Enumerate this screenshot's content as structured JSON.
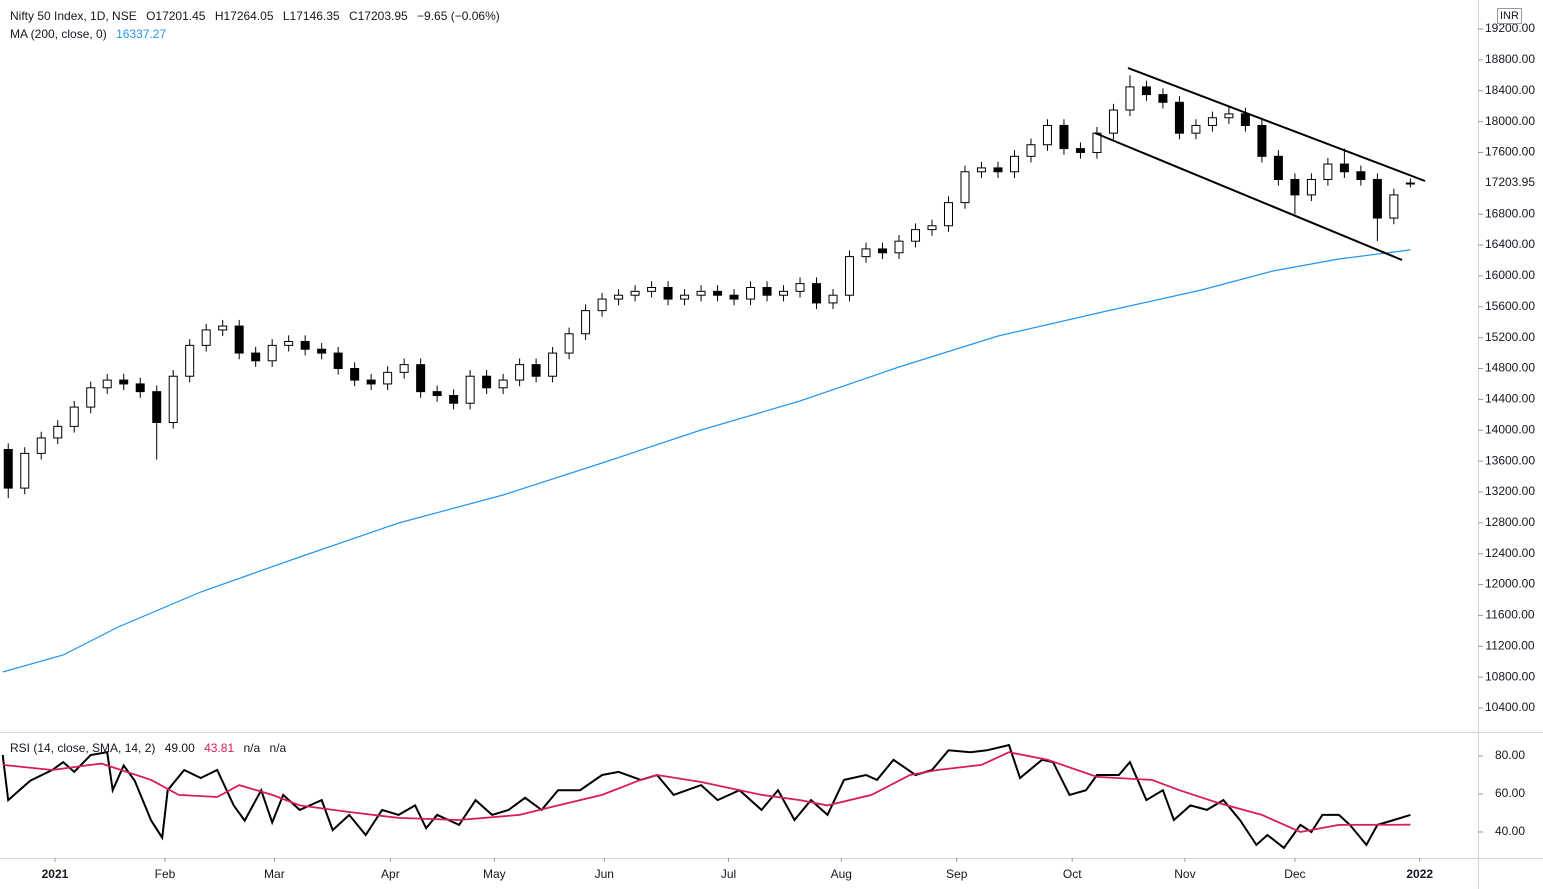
{
  "chart_data": [
    {
      "type": "candlestick",
      "title": "Nifty 50 Index, 1D, NSE",
      "ohlc_labels": [
        "O17201.45",
        "H17264.05",
        "L17146.35",
        "C17203.95"
      ],
      "change": "−9.65 (−0.06%)",
      "currency": "INR",
      "up_color": "#ffffff",
      "down_color": "#000000",
      "edge_color": "#000000",
      "x": [
        0,
        3,
        6,
        9,
        12,
        15,
        18,
        21,
        24,
        27,
        30,
        33,
        36,
        39,
        42,
        45,
        48,
        51,
        54,
        57,
        60,
        63,
        66,
        69,
        72,
        75,
        78,
        81,
        84,
        87,
        90,
        93,
        96,
        99,
        102,
        105,
        108,
        111,
        114,
        117,
        120,
        123,
        126,
        129,
        132,
        135,
        138,
        141,
        144,
        147,
        150,
        153,
        156,
        159,
        162,
        165,
        168,
        171,
        174,
        177,
        180,
        183,
        186,
        189,
        192,
        195,
        198,
        201,
        204,
        207,
        210,
        213,
        216,
        219,
        222,
        225,
        228,
        231,
        234,
        237,
        240,
        243,
        246,
        249,
        252,
        255
      ],
      "open": [
        13750,
        13250,
        13700,
        13900,
        14050,
        14300,
        14550,
        14650,
        14600,
        14500,
        14100,
        14700,
        15100,
        15300,
        15350,
        15000,
        14900,
        15100,
        15150,
        15050,
        15000,
        14800,
        14650,
        14600,
        14750,
        14850,
        14500,
        14450,
        14350,
        14700,
        14550,
        14650,
        14850,
        14700,
        15000,
        15250,
        15550,
        15700,
        15750,
        15800,
        15850,
        15700,
        15750,
        15800,
        15750,
        15700,
        15850,
        15750,
        15800,
        15900,
        15650,
        15750,
        16250,
        16350,
        16300,
        16450,
        16600,
        16650,
        16950,
        17350,
        17400,
        17350,
        17550,
        17700,
        17950,
        17650,
        17600,
        17850,
        18150,
        18450,
        18350,
        18250,
        17850,
        17950,
        18050,
        18100,
        17950,
        17550,
        17250,
        17050,
        17250,
        17450,
        17350,
        17250,
        16750,
        17201.45
      ],
      "high": [
        13830,
        13780,
        13980,
        14130,
        14380,
        14630,
        14730,
        14730,
        14680,
        14580,
        14780,
        15180,
        15380,
        15430,
        15430,
        15080,
        15180,
        15230,
        15230,
        15130,
        15080,
        14880,
        14730,
        14830,
        14930,
        14930,
        14580,
        14530,
        14780,
        14780,
        14730,
        14930,
        14930,
        15080,
        15330,
        15630,
        15780,
        15830,
        15880,
        15930,
        15930,
        15830,
        15880,
        15880,
        15830,
        15930,
        15930,
        15880,
        15980,
        15980,
        15830,
        16330,
        16430,
        16430,
        16530,
        16680,
        16730,
        17030,
        17430,
        17480,
        17480,
        17630,
        17780,
        18030,
        18030,
        17730,
        17930,
        18230,
        18600,
        18530,
        18430,
        18330,
        18030,
        18130,
        18200,
        18180,
        18030,
        17630,
        17330,
        17330,
        17530,
        17650,
        17430,
        17330,
        17130,
        17264.05
      ],
      "low": [
        13120,
        13170,
        13620,
        13820,
        13970,
        14220,
        14470,
        14520,
        14420,
        13620,
        14020,
        14620,
        15020,
        15220,
        14920,
        14820,
        14820,
        15020,
        14970,
        14920,
        14720,
        14570,
        14520,
        14520,
        14670,
        14420,
        14370,
        14270,
        14270,
        14470,
        14470,
        14570,
        14620,
        14620,
        14920,
        15170,
        15470,
        15620,
        15670,
        15720,
        15620,
        15620,
        15670,
        15670,
        15620,
        15620,
        15670,
        15670,
        15720,
        15570,
        15570,
        15670,
        16170,
        16220,
        16220,
        16370,
        16520,
        16570,
        16870,
        17270,
        17270,
        17270,
        17470,
        17620,
        17570,
        17520,
        17520,
        17770,
        18070,
        18270,
        18170,
        17770,
        17770,
        17870,
        17970,
        17870,
        17470,
        17170,
        16800,
        16970,
        17170,
        17270,
        17170,
        16450,
        16670,
        17146.35
      ],
      "close": [
        13250,
        13700,
        13900,
        14050,
        14300,
        14550,
        14650,
        14600,
        14500,
        14100,
        14700,
        15100,
        15300,
        15350,
        15000,
        14900,
        15100,
        15150,
        15050,
        15000,
        14800,
        14650,
        14600,
        14750,
        14850,
        14500,
        14450,
        14350,
        14700,
        14550,
        14650,
        14850,
        14700,
        15000,
        15250,
        15550,
        15700,
        15750,
        15800,
        15850,
        15700,
        15750,
        15800,
        15750,
        15700,
        15850,
        15750,
        15800,
        15900,
        15650,
        15750,
        16250,
        16350,
        16300,
        16450,
        16600,
        16650,
        16950,
        17350,
        17400,
        17350,
        17550,
        17700,
        17950,
        17650,
        17600,
        17850,
        18150,
        18450,
        18350,
        18250,
        17850,
        17950,
        18050,
        18100,
        17950,
        17550,
        17250,
        17050,
        17250,
        17450,
        17350,
        17250,
        16750,
        17050,
        17203.95
      ],
      "overlays": [
        {
          "name": "MA (200, close, 0)",
          "color": "#2196f3",
          "x": [
            -1,
            10,
            20,
            35,
            53,
            71,
            90,
            108,
            126,
            144,
            162,
            180,
            199,
            217,
            230,
            242,
            255
          ],
          "values": [
            10867,
            11087,
            11450,
            11904,
            12357,
            12798,
            13161,
            13575,
            14003,
            14379,
            14820,
            15221,
            15532,
            15817,
            16064,
            16219,
            16337.27
          ]
        }
      ],
      "xlim": [
        -1.5,
        267.3
      ],
      "ylim": [
        10089,
        19576
      ],
      "yticks": [
        {
          "value": 10400,
          "label": "10400.00"
        },
        {
          "value": 10800,
          "label": "10800.00"
        },
        {
          "value": 11200,
          "label": "11200.00"
        },
        {
          "value": 11600,
          "label": "11600.00"
        },
        {
          "value": 12000,
          "label": "12000.00"
        },
        {
          "value": 12400,
          "label": "12400.00"
        },
        {
          "value": 12800,
          "label": "12800.00"
        },
        {
          "value": 13200,
          "label": "13200.00"
        },
        {
          "value": 13600,
          "label": "13600.00"
        },
        {
          "value": 14000,
          "label": "14000.00"
        },
        {
          "value": 14400,
          "label": "14400.00"
        },
        {
          "value": 14800,
          "label": "14800.00"
        },
        {
          "value": 15200,
          "label": "15200.00"
        },
        {
          "value": 15600,
          "label": "15600.00"
        },
        {
          "value": 16000,
          "label": "16000.00"
        },
        {
          "value": 16400,
          "label": "16400.00"
        },
        {
          "value": 16800,
          "label": "16800.00"
        },
        {
          "value": 17600,
          "label": "17600.00"
        },
        {
          "value": 18000,
          "label": "18000.00"
        },
        {
          "value": 18400,
          "label": "18400.00"
        },
        {
          "value": 18800,
          "label": "18800.00"
        },
        {
          "value": 19200,
          "label": "19200.00"
        }
      ]
    },
    {
      "type": "line",
      "title": "RSI (14, close, SMA, 14, 2)",
      "legend_values": [
        "49.00",
        "43.81",
        "n/a",
        "n/a"
      ],
      "series": [
        {
          "color": "#000000",
          "x": [
            -1,
            0,
            4,
            8,
            10,
            12,
            15,
            18,
            19,
            21,
            23,
            26,
            28,
            29,
            32,
            35,
            38,
            41,
            43,
            46,
            48,
            50,
            53,
            57,
            59,
            62,
            65,
            68,
            71,
            74,
            76,
            78,
            82,
            85,
            88,
            91,
            94,
            97,
            100,
            104,
            108,
            111,
            115,
            118,
            121,
            126,
            129,
            133,
            137,
            140,
            143,
            146,
            149,
            152,
            156,
            158,
            161,
            165,
            168,
            171,
            175,
            178,
            182,
            184,
            188,
            190,
            193,
            196,
            198,
            202,
            204,
            207,
            210,
            212,
            215,
            218,
            221,
            224,
            227,
            229,
            232,
            235,
            237,
            239,
            242,
            244,
            247,
            249,
            252,
            255
          ],
          "values": [
            80.5,
            56.8,
            67,
            72.6,
            76.8,
            71.6,
            80.5,
            82,
            62,
            75,
            67,
            46,
            37,
            62,
            72.6,
            68.4,
            72.6,
            54,
            46,
            62,
            45,
            59.5,
            51.6,
            56.8,
            41,
            49,
            38.4,
            51.6,
            49,
            54,
            42,
            49,
            43.7,
            56.8,
            49,
            51.6,
            58,
            51.6,
            62,
            62,
            70,
            71.6,
            67.4,
            70,
            59.5,
            64.7,
            56.8,
            62,
            51.6,
            62,
            46.3,
            56.8,
            49,
            67.4,
            70,
            67.4,
            78,
            70,
            72.6,
            83,
            82,
            83,
            85.8,
            68.4,
            78,
            76.8,
            59.5,
            62,
            70,
            70,
            76.8,
            56.8,
            62,
            46.3,
            54,
            51.6,
            56.8,
            46.3,
            33.2,
            38.4,
            31.6,
            43.7,
            40,
            49,
            49,
            43.7,
            33.2,
            43.7,
            46.3,
            49
          ]
        },
        {
          "color": "#d81b60",
          "x": [
            -1,
            8,
            15,
            17,
            26,
            31,
            38,
            42,
            48,
            53,
            62,
            71,
            82,
            93,
            100,
            108,
            115,
            118,
            126,
            137,
            144,
            149,
            157,
            164,
            169,
            177,
            182,
            189,
            198,
            208,
            213,
            220,
            228,
            235,
            242,
            255
          ],
          "values": [
            75.3,
            72.6,
            75.3,
            76,
            67.4,
            59.5,
            58.4,
            64.7,
            59.5,
            54,
            50.5,
            47.4,
            46.3,
            49,
            54,
            59.5,
            67.4,
            70,
            66.3,
            59.5,
            56.8,
            54,
            59.5,
            70,
            72.6,
            75.3,
            82,
            78,
            69,
            67.4,
            62,
            55.3,
            49,
            40,
            43.7,
            43.81
          ]
        }
      ],
      "xlim": [
        -1.5,
        267.3
      ],
      "ylim": [
        26.3,
        92.1
      ],
      "yticks": [
        {
          "value": 40,
          "label": "40.00"
        },
        {
          "value": 60,
          "label": "60.00"
        },
        {
          "value": 80,
          "label": "80.00"
        }
      ],
      "xticks": [
        {
          "value": 8.5,
          "label": "2021"
        },
        {
          "value": 28.5,
          "label": "Feb"
        },
        {
          "value": 48.4,
          "label": "Mar"
        },
        {
          "value": 69.5,
          "label": "Apr"
        },
        {
          "value": 88.4,
          "label": "May"
        },
        {
          "value": 108.4,
          "label": "Jun"
        },
        {
          "value": 131,
          "label": "Jul"
        },
        {
          "value": 151.5,
          "label": "Aug"
        },
        {
          "value": 172.5,
          "label": "Sep"
        },
        {
          "value": 193.5,
          "label": "Oct"
        },
        {
          "value": 214,
          "label": "Nov"
        },
        {
          "value": 234,
          "label": "Dec"
        },
        {
          "value": 256.7,
          "label": "2022"
        }
      ]
    }
  ]
}
